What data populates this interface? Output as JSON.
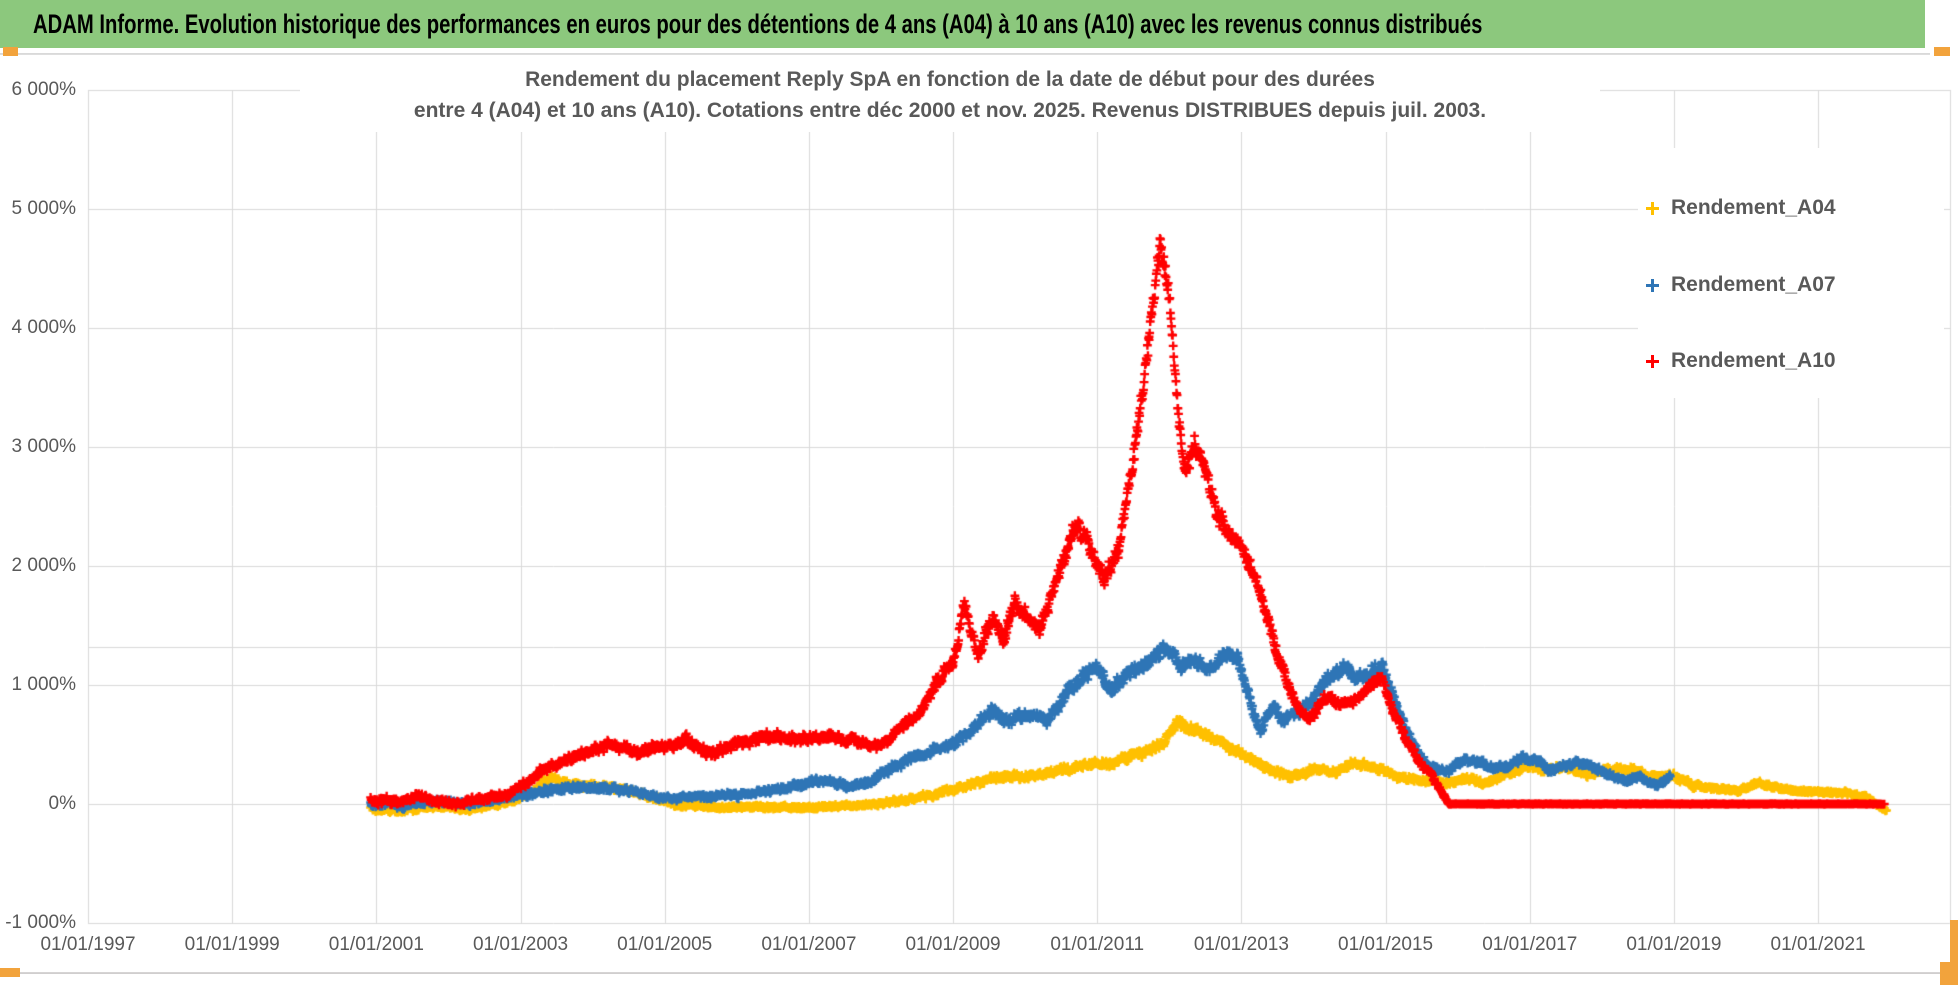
{
  "banner": {
    "text": "ADAM Informe. Evolution historique des performances en euros pour des détentions de 4 ans (A04) à 10 ans (A10) avec les revenus connus distribués",
    "bg_color": "#8CC87D",
    "text_color": "#000000"
  },
  "handles": {
    "color": "#F2A33C"
  },
  "chart": {
    "title_line1": "Rendement du placement Reply SpA en fonction de la date de début pour des durées",
    "title_line2": "entre 4 (A04) et 10 ans (A10). Cotations entre déc 2000 et nov. 2025. Revenus DISTRIBUES depuis juil. 2003.",
    "text_color": "#595959",
    "gridline_color": "#D9D9D9",
    "background": "#FFFFFF",
    "y_axis": {
      "tick_labels": [
        "6 000%",
        "5 000%",
        "4 000%",
        "3 000%",
        "2 000%",
        "1 000%",
        "0%",
        "-1 000%"
      ],
      "tick_values": [
        6000,
        5000,
        4000,
        3000,
        2000,
        1000,
        0,
        -1000
      ]
    },
    "x_axis": {
      "tick_labels": [
        "01/01/1997",
        "01/01/1999",
        "01/01/2001",
        "01/01/2003",
        "01/01/2005",
        "01/01/2007",
        "01/01/2009",
        "01/01/2011",
        "01/01/2013",
        "01/01/2015",
        "01/01/2017",
        "01/01/2019",
        "01/01/2021"
      ],
      "tick_years": [
        1997,
        1999,
        2001,
        2003,
        2005,
        2007,
        2009,
        2011,
        2013,
        2015,
        2017,
        2019,
        2021
      ]
    },
    "legend": [
      {
        "label": "Rendement_A04",
        "color": "#FFC000"
      },
      {
        "label": "Rendement_A07",
        "color": "#2E75B6"
      },
      {
        "label": "Rendement_A10",
        "color": "#FF0000"
      }
    ]
  },
  "chart_data": {
    "type": "scatter",
    "marker": "plus",
    "title": "Rendement du placement Reply SpA en fonction de la date de début pour des durées entre 4 (A04) et 10 ans (A10)",
    "x_unit": "date de début (année décimale)",
    "y_unit": "rendement %",
    "x_range": [
      1997.0,
      2022.83
    ],
    "y_range": [
      -1000,
      6000
    ],
    "grid": true,
    "extra_gridline_value": 1322,
    "legend_position": "right-top",
    "series": [
      {
        "name": "Rendement_A04",
        "color": "#FFC000",
        "anchors_format": [
          "year",
          "value_pct",
          "scatter_halfband_pct"
        ],
        "anchors": [
          [
            2000.92,
            -30,
            38
          ],
          [
            2001.3,
            -60,
            34
          ],
          [
            2001.8,
            -20,
            34
          ],
          [
            2002.3,
            -40,
            34
          ],
          [
            2002.8,
            20,
            35
          ],
          [
            2003.1,
            80,
            40
          ],
          [
            2003.45,
            230,
            48
          ],
          [
            2003.7,
            150,
            42
          ],
          [
            2004.0,
            150,
            40
          ],
          [
            2004.3,
            140,
            38
          ],
          [
            2004.8,
            60,
            34
          ],
          [
            2005.2,
            -10,
            30
          ],
          [
            2005.7,
            -30,
            28
          ],
          [
            2006.2,
            -20,
            28
          ],
          [
            2006.8,
            -35,
            28
          ],
          [
            2007.3,
            -25,
            28
          ],
          [
            2007.8,
            -5,
            30
          ],
          [
            2008.3,
            30,
            34
          ],
          [
            2008.8,
            85,
            38
          ],
          [
            2009.2,
            150,
            42
          ],
          [
            2009.6,
            220,
            46
          ],
          [
            2010.0,
            230,
            46
          ],
          [
            2010.4,
            280,
            48
          ],
          [
            2010.8,
            330,
            50
          ],
          [
            2011.2,
            340,
            50
          ],
          [
            2011.6,
            420,
            55
          ],
          [
            2011.9,
            505,
            60
          ],
          [
            2012.1,
            680,
            66
          ],
          [
            2012.3,
            625,
            62
          ],
          [
            2012.5,
            590,
            60
          ],
          [
            2012.8,
            480,
            55
          ],
          [
            2013.1,
            400,
            50
          ],
          [
            2013.4,
            280,
            45
          ],
          [
            2013.7,
            235,
            42
          ],
          [
            2014.0,
            290,
            44
          ],
          [
            2014.3,
            270,
            42
          ],
          [
            2014.6,
            350,
            46
          ],
          [
            2014.9,
            300,
            44
          ],
          [
            2015.2,
            220,
            40
          ],
          [
            2015.5,
            200,
            38
          ],
          [
            2015.8,
            180,
            38
          ],
          [
            2016.1,
            210,
            40
          ],
          [
            2016.4,
            175,
            38
          ],
          [
            2016.7,
            260,
            42
          ],
          [
            2016.95,
            310,
            44
          ],
          [
            2017.2,
            280,
            42
          ],
          [
            2017.5,
            315,
            42
          ],
          [
            2017.8,
            250,
            40
          ],
          [
            2018.1,
            290,
            42
          ],
          [
            2018.4,
            300,
            42
          ],
          [
            2018.7,
            225,
            40
          ],
          [
            2019.0,
            230,
            40
          ],
          [
            2019.3,
            150,
            35
          ],
          [
            2019.6,
            125,
            33
          ],
          [
            2019.9,
            110,
            30
          ],
          [
            2020.2,
            180,
            34
          ],
          [
            2020.5,
            125,
            30
          ],
          [
            2020.8,
            110,
            30
          ],
          [
            2021.1,
            100,
            28
          ],
          [
            2021.4,
            90,
            28
          ],
          [
            2021.65,
            60,
            25
          ],
          [
            2021.85,
            -15,
            22
          ],
          [
            2021.95,
            -55,
            18
          ]
        ]
      },
      {
        "name": "Rendement_A07",
        "color": "#2E75B6",
        "anchors_format": [
          "year",
          "value_pct",
          "scatter_halfband_pct"
        ],
        "anchors": [
          [
            2000.92,
            5,
            45
          ],
          [
            2001.4,
            -15,
            42
          ],
          [
            2001.9,
            30,
            42
          ],
          [
            2002.3,
            0,
            40
          ],
          [
            2002.7,
            40,
            40
          ],
          [
            2003.05,
            80,
            45
          ],
          [
            2003.5,
            130,
            48
          ],
          [
            2004.0,
            140,
            45
          ],
          [
            2004.45,
            115,
            40
          ],
          [
            2004.95,
            55,
            38
          ],
          [
            2005.5,
            60,
            38
          ],
          [
            2006.0,
            80,
            40
          ],
          [
            2006.5,
            115,
            42
          ],
          [
            2007.0,
            185,
            48
          ],
          [
            2007.3,
            200,
            48
          ],
          [
            2007.55,
            150,
            44
          ],
          [
            2007.8,
            175,
            44
          ],
          [
            2008.05,
            280,
            52
          ],
          [
            2008.4,
            380,
            58
          ],
          [
            2008.7,
            450,
            60
          ],
          [
            2009.0,
            515,
            62
          ],
          [
            2009.3,
            650,
            68
          ],
          [
            2009.55,
            790,
            72
          ],
          [
            2009.75,
            690,
            68
          ],
          [
            2010.0,
            745,
            70
          ],
          [
            2010.3,
            705,
            66
          ],
          [
            2010.6,
            950,
            78
          ],
          [
            2010.8,
            1090,
            82
          ],
          [
            2011.0,
            1150,
            84
          ],
          [
            2011.2,
            955,
            78
          ],
          [
            2011.45,
            1100,
            84
          ],
          [
            2011.7,
            1200,
            88
          ],
          [
            2011.95,
            1330,
            92
          ],
          [
            2012.15,
            1150,
            84
          ],
          [
            2012.35,
            1225,
            88
          ],
          [
            2012.55,
            1120,
            84
          ],
          [
            2012.75,
            1270,
            88
          ],
          [
            2012.95,
            1235,
            88
          ],
          [
            2013.1,
            900,
            74
          ],
          [
            2013.25,
            625,
            64
          ],
          [
            2013.45,
            820,
            70
          ],
          [
            2013.6,
            705,
            64
          ],
          [
            2013.8,
            780,
            66
          ],
          [
            2014.0,
            900,
            70
          ],
          [
            2014.2,
            1050,
            75
          ],
          [
            2014.45,
            1150,
            78
          ],
          [
            2014.6,
            1055,
            74
          ],
          [
            2014.8,
            1100,
            75
          ],
          [
            2014.95,
            1145,
            78
          ],
          [
            2015.1,
            900,
            70
          ],
          [
            2015.3,
            600,
            58
          ],
          [
            2015.5,
            380,
            50
          ],
          [
            2015.7,
            280,
            45
          ],
          [
            2015.9,
            285,
            45
          ],
          [
            2016.1,
            380,
            48
          ],
          [
            2016.3,
            345,
            46
          ],
          [
            2016.5,
            295,
            44
          ],
          [
            2016.7,
            325,
            45
          ],
          [
            2016.9,
            380,
            48
          ],
          [
            2017.1,
            350,
            45
          ],
          [
            2017.3,
            295,
            44
          ],
          [
            2017.5,
            320,
            44
          ],
          [
            2017.7,
            350,
            44
          ],
          [
            2017.9,
            300,
            43
          ],
          [
            2018.1,
            250,
            42
          ],
          [
            2018.3,
            185,
            40
          ],
          [
            2018.5,
            235,
            40
          ],
          [
            2018.75,
            155,
            38
          ],
          [
            2018.95,
            235,
            40
          ]
        ]
      },
      {
        "name": "Rendement_A10",
        "color": "#FF0000",
        "anchors_format": [
          "year",
          "value_pct",
          "scatter_halfband_pct"
        ],
        "anchors": [
          [
            2000.92,
            30,
            55
          ],
          [
            2001.25,
            15,
            50
          ],
          [
            2001.6,
            55,
            50
          ],
          [
            2002.0,
            10,
            45
          ],
          [
            2002.4,
            30,
            45
          ],
          [
            2002.75,
            60,
            45
          ],
          [
            2003.0,
            140,
            50
          ],
          [
            2003.3,
            280,
            55
          ],
          [
            2003.6,
            360,
            60
          ],
          [
            2003.9,
            430,
            65
          ],
          [
            2004.2,
            500,
            65
          ],
          [
            2004.6,
            440,
            60
          ],
          [
            2005.0,
            480,
            60
          ],
          [
            2005.3,
            540,
            60
          ],
          [
            2005.65,
            420,
            55
          ],
          [
            2006.0,
            500,
            60
          ],
          [
            2006.4,
            590,
            65
          ],
          [
            2006.8,
            540,
            60
          ],
          [
            2007.2,
            565,
            60
          ],
          [
            2007.6,
            545,
            55
          ],
          [
            2007.95,
            480,
            55
          ],
          [
            2008.15,
            570,
            60
          ],
          [
            2008.35,
            700,
            70
          ],
          [
            2008.55,
            760,
            70
          ],
          [
            2008.8,
            1050,
            85
          ],
          [
            2009.0,
            1180,
            90
          ],
          [
            2009.15,
            1680,
            110
          ],
          [
            2009.35,
            1260,
            90
          ],
          [
            2009.55,
            1560,
            100
          ],
          [
            2009.7,
            1390,
            90
          ],
          [
            2009.85,
            1690,
            100
          ],
          [
            2010.0,
            1580,
            95
          ],
          [
            2010.2,
            1460,
            90
          ],
          [
            2010.45,
            1900,
            105
          ],
          [
            2010.7,
            2370,
            115
          ],
          [
            2010.9,
            2150,
            110
          ],
          [
            2011.1,
            1880,
            105
          ],
          [
            2011.3,
            2110,
            110
          ],
          [
            2011.55,
            3100,
            130
          ],
          [
            2011.72,
            3900,
            140
          ],
          [
            2011.87,
            4690,
            130
          ],
          [
            2012.0,
            4280,
            140
          ],
          [
            2012.12,
            3300,
            140
          ],
          [
            2012.22,
            2760,
            130
          ],
          [
            2012.35,
            3000,
            130
          ],
          [
            2012.5,
            2820,
            120
          ],
          [
            2012.65,
            2460,
            110
          ],
          [
            2012.8,
            2300,
            105
          ],
          [
            2013.0,
            2160,
            100
          ],
          [
            2013.2,
            1900,
            95
          ],
          [
            2013.45,
            1350,
            85
          ],
          [
            2013.6,
            1080,
            70
          ],
          [
            2013.78,
            800,
            60
          ],
          [
            2013.95,
            720,
            60
          ],
          [
            2014.15,
            890,
            60
          ],
          [
            2014.35,
            850,
            55
          ],
          [
            2014.55,
            860,
            55
          ],
          [
            2014.75,
            970,
            60
          ],
          [
            2014.95,
            1060,
            60
          ],
          [
            2015.1,
            800,
            55
          ],
          [
            2015.3,
            520,
            50
          ],
          [
            2015.5,
            340,
            45
          ],
          [
            2015.68,
            200,
            40
          ],
          [
            2015.82,
            60,
            25
          ],
          [
            2015.88,
            0,
            4
          ],
          [
            2021.92,
            0,
            4
          ]
        ]
      }
    ]
  }
}
